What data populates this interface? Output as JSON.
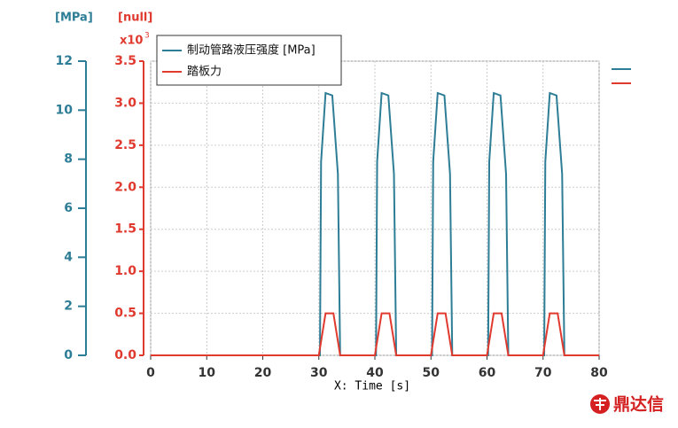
{
  "chart_data": {
    "type": "line",
    "ylabel": "[MPa]",
    "y2label": "[null]",
    "y2_scale_label": "x10",
    "y2_scale_exponent": "3",
    "xlabel": "X: Time [s]",
    "xlim": [
      0,
      80
    ],
    "xticks": [
      0,
      10,
      20,
      30,
      40,
      50,
      60,
      70,
      80
    ],
    "ylim": [
      0,
      12
    ],
    "yticks": [
      0,
      2,
      4,
      6,
      8,
      10,
      12
    ],
    "y2lim": [
      0,
      3.5
    ],
    "y2ticks": [
      {
        "value": 0,
        "label": "0.0"
      },
      {
        "value": 0.5,
        "label": "0.5"
      },
      {
        "value": 1,
        "label": "1.0"
      },
      {
        "value": 1.5,
        "label": "1.5"
      },
      {
        "value": 2,
        "label": "2.0"
      },
      {
        "value": 2.5,
        "label": "2.5"
      },
      {
        "value": 3,
        "label": "3.0"
      },
      {
        "value": 3.5,
        "label": "3.5"
      }
    ],
    "grid": true,
    "series": [
      {
        "name": "制动管路液压强度 [MPa]",
        "color": "#2e7d96",
        "x": [
          0,
          30.2,
          30.4,
          31.2,
          32.4,
          33.4,
          33.8,
          40.2,
          40.4,
          41.2,
          42.4,
          43.4,
          43.8,
          50.2,
          50.4,
          51.2,
          52.4,
          53.4,
          53.8,
          60.2,
          60.4,
          61.2,
          62.4,
          63.4,
          63.8,
          70.2,
          70.4,
          71.2,
          72.4,
          73.4,
          73.8,
          80
        ],
        "values": [
          0,
          0,
          7.9,
          10.7,
          10.6,
          7.4,
          0,
          0,
          7.9,
          10.7,
          10.6,
          7.4,
          0,
          0,
          7.9,
          10.7,
          10.6,
          7.4,
          0,
          0,
          7.9,
          10.7,
          10.6,
          7.4,
          0,
          0,
          7.9,
          10.7,
          10.6,
          7.4,
          0,
          0
        ]
      },
      {
        "name": "踏板力",
        "color": "#e03a2f",
        "axis": "y2",
        "x": [
          0,
          30,
          31.2,
          32.6,
          33.8,
          40,
          41.2,
          42.6,
          43.8,
          50,
          51.2,
          52.6,
          53.8,
          60,
          61.2,
          62.6,
          63.8,
          70,
          71.2,
          72.6,
          73.8,
          80
        ],
        "values": [
          0,
          0,
          0.5,
          0.5,
          0,
          0,
          0.5,
          0.5,
          0,
          0,
          0.5,
          0.5,
          0,
          0,
          0.5,
          0.5,
          0,
          0,
          0.5,
          0.5,
          0,
          0
        ]
      }
    ]
  },
  "watermark": "鼎达信"
}
